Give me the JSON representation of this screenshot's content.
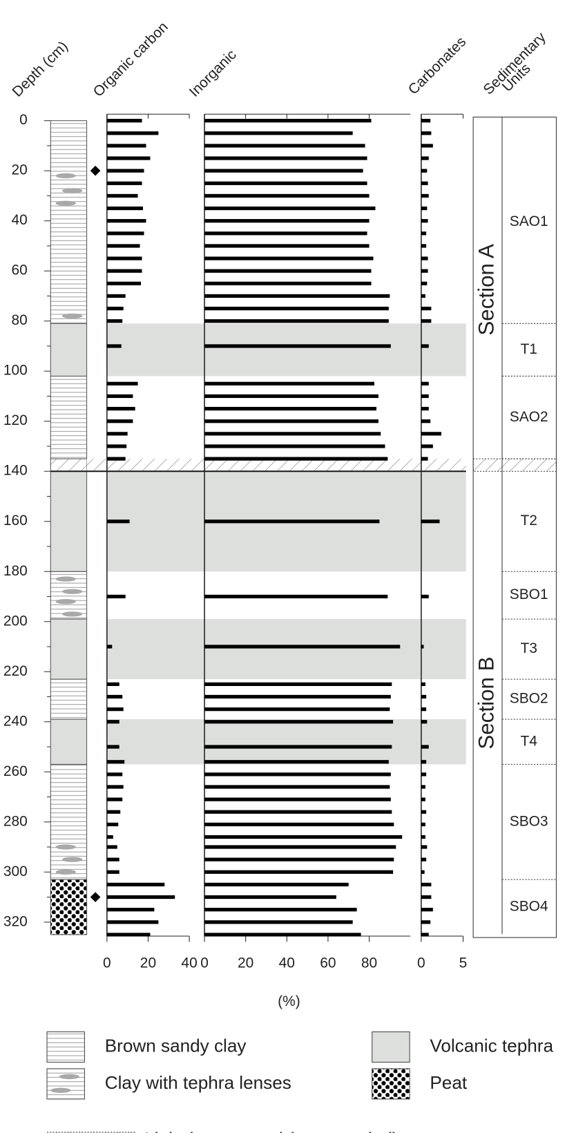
{
  "depth_axis": {
    "label": "Depth (cm)",
    "ylim": [
      0,
      325
    ],
    "yticks": [
      0,
      20,
      40,
      60,
      80,
      100,
      120,
      140,
      160,
      180,
      200,
      220,
      240,
      260,
      280,
      300,
      320
    ],
    "minor_yticks": [
      10,
      30,
      50,
      70,
      90,
      110,
      130,
      150,
      170,
      190,
      210,
      230,
      250,
      270,
      290,
      310
    ],
    "sample_depths": [
      0,
      5,
      10,
      15,
      20,
      25,
      30,
      35,
      40,
      45,
      50,
      55,
      60,
      65,
      70,
      75,
      80,
      90,
      105,
      110,
      115,
      120,
      125,
      130,
      135,
      160,
      190,
      210,
      225,
      230,
      235,
      240,
      250,
      256,
      261,
      266,
      271,
      276,
      281,
      286,
      290,
      295,
      300,
      305,
      310,
      315,
      320,
      325
    ],
    "dated_depths": [
      20,
      310
    ]
  },
  "chart_data": [
    {
      "type": "hbar",
      "title": "Organic carbon",
      "color": "#000000",
      "xlim": [
        0,
        40
      ],
      "xticks": [
        0,
        20,
        40
      ],
      "values": [
        17,
        25,
        19,
        21,
        18,
        17,
        15,
        17.5,
        19,
        18,
        16,
        17,
        17,
        16.5,
        9,
        8,
        7.5,
        7,
        15,
        12.6,
        13.7,
        12.6,
        10,
        9.5,
        9,
        11,
        9,
        2.5,
        6,
        7.5,
        8,
        6,
        6,
        8.5,
        7.5,
        8,
        7.5,
        6.5,
        5.5,
        3,
        5,
        6,
        6,
        28,
        33,
        23,
        25,
        21
      ]
    },
    {
      "type": "hbar",
      "title": "Inorganic",
      "color": "#000000",
      "xlim": [
        0,
        100
      ],
      "xticks": [
        0,
        20,
        40,
        60,
        80
      ],
      "values": [
        81,
        72,
        78,
        79,
        77,
        79,
        80,
        83,
        80,
        79,
        80,
        82,
        81,
        81,
        90,
        89.5,
        89.5,
        90.5,
        82.5,
        84.5,
        83.5,
        84.5,
        85.6,
        87.7,
        89,
        85,
        89,
        95,
        91,
        90.5,
        90,
        91.6,
        91,
        89.5,
        90.5,
        90,
        90.5,
        91,
        92,
        96,
        93,
        92,
        91.6,
        70,
        64,
        74,
        72,
        76
      ]
    },
    {
      "type": "hbar",
      "title": "Carbonates",
      "color": "#000000",
      "xlim": [
        0,
        5
      ],
      "xticks": [
        0,
        5
      ],
      "values": [
        1.1,
        1.2,
        1.4,
        0.9,
        0.7,
        0.8,
        0.9,
        0.7,
        0.8,
        0.6,
        0.6,
        0.8,
        0.8,
        0.7,
        0.5,
        1.2,
        1.2,
        0.9,
        0.9,
        0.9,
        0.9,
        1.1,
        2.4,
        1.4,
        0.8,
        2.2,
        0.9,
        0.3,
        0.5,
        0.6,
        0.6,
        0.7,
        0.9,
        0.6,
        0.6,
        0.5,
        0.5,
        0.6,
        0.5,
        0.5,
        0.7,
        0.6,
        0.4,
        1.2,
        1.2,
        1.4,
        1.1,
        0.9
      ]
    }
  ],
  "x_axis_label": "(%)",
  "units_title": [
    "Sedimentary",
    "Units"
  ],
  "sections": [
    {
      "label": "Section A",
      "range": [
        0,
        135
      ]
    },
    {
      "label": "Section B",
      "range": [
        140,
        325
      ]
    }
  ],
  "units": [
    {
      "label": "SAO1",
      "range": [
        0,
        81
      ]
    },
    {
      "label": "T1",
      "range": [
        81,
        102
      ]
    },
    {
      "label": "SAO2",
      "range": [
        102,
        135
      ]
    },
    {
      "label": "T2",
      "range": [
        140,
        180
      ]
    },
    {
      "label": "SBO1",
      "range": [
        180,
        199
      ]
    },
    {
      "label": "T3",
      "range": [
        199,
        223
      ]
    },
    {
      "label": "SBO2",
      "range": [
        223,
        239
      ]
    },
    {
      "label": "T4",
      "range": [
        239,
        257
      ]
    },
    {
      "label": "SBO3",
      "range": [
        257,
        303
      ]
    },
    {
      "label": "SBO4",
      "range": [
        303,
        325
      ]
    }
  ],
  "lithology": [
    {
      "label": "Brown sandy clay",
      "pattern": "lines",
      "intervals": [
        [
          0,
          81
        ],
        [
          102,
          135
        ],
        [
          180,
          199
        ],
        [
          223,
          239
        ],
        [
          257,
          303
        ]
      ]
    },
    {
      "label": "Volcanic tephra",
      "pattern": "shade",
      "intervals": [
        [
          81,
          102
        ],
        [
          140,
          180
        ],
        [
          199,
          223
        ],
        [
          239,
          257
        ]
      ]
    },
    {
      "label": "Clay with tephra lenses",
      "pattern": "lens",
      "depths": [
        22,
        28,
        33,
        78,
        183,
        188,
        192,
        197,
        290,
        295,
        300
      ]
    },
    {
      "label": "Peat",
      "pattern": "dots",
      "intervals": [
        [
          303,
          325
        ]
      ]
    },
    {
      "label": "Light-brown sand (not sampled)",
      "pattern": "hatch",
      "intervals": [
        [
          135,
          140
        ]
      ]
    }
  ]
}
